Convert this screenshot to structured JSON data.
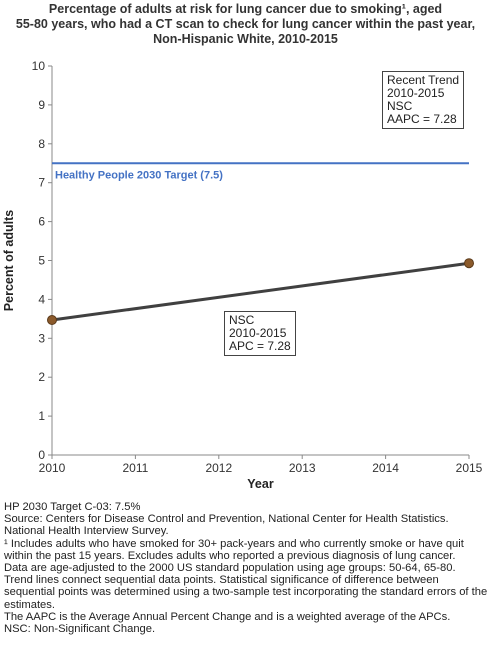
{
  "title_lines": [
    "Percentage of adults at risk for lung cancer due to smoking¹, aged",
    "55-80 years, who had a CT scan to check for lung cancer within the past year,",
    "Non-Hispanic White,  2010-2015"
  ],
  "chart_data": {
    "type": "line",
    "xlabel": "Year",
    "ylabel": "Percent of adults",
    "xlim": [
      2010,
      2015
    ],
    "ylim": [
      0,
      10
    ],
    "x_ticks": [
      2010,
      2011,
      2012,
      2013,
      2014,
      2015
    ],
    "y_ticks": [
      0,
      1,
      2,
      3,
      4,
      5,
      6,
      7,
      8,
      9,
      10
    ],
    "grid": false,
    "series": [
      {
        "points": [
          {
            "x": 2010,
            "y": 3.47
          },
          {
            "x": 2015,
            "y": 4.93
          }
        ]
      }
    ],
    "target": {
      "label": "Healthy People 2030 Target (7.5)",
      "value": 7.5
    },
    "colors": {
      "line": "#404040",
      "marker": "#8B5A2B",
      "target": "#4472C4",
      "axes": "#888888"
    }
  },
  "recent_trend_box": [
    "Recent Trend",
    "2010-2015",
    "NSC",
    "AAPC =  7.28"
  ],
  "segment_box": [
    "NSC",
    "2010-2015",
    "APC =  7.28"
  ],
  "footnotes": [
    "HP 2030 Target C-03: 7.5%",
    "Source: Centers for Disease Control and Prevention, National Center for Health Statistics. National Health Interview Survey.",
    "¹ Includes adults who have smoked for 30+ pack-years and who currently smoke or have quit within the past 15 years. Excludes adults who reported a previous diagnosis of lung cancer.",
    "Data are age-adjusted to the 2000 US standard population using age groups: 50-64, 65-80.",
    "Trend lines connect sequential data points. Statistical significance of difference between sequential points was determined using a two-sample test incorporating the standard errors of the estimates.",
    "The AAPC is the Average Annual Percent Change and is a weighted average of the APCs.",
    "NSC: Non-Significant Change."
  ]
}
